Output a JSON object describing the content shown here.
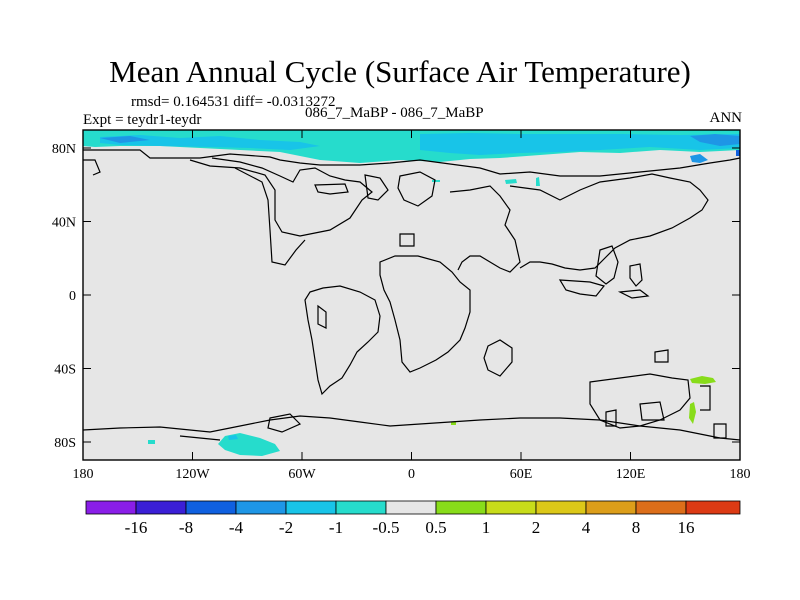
{
  "title": "Mean Annual Cycle (Surface Air Temperature)",
  "stats_line": "rmsd= 0.164531  diff= -0.0313272",
  "expt_line": "Expt = teydr1-teydr",
  "cases_line": "086_7_MaBP - 086_7_MaBP",
  "season": "ANN",
  "x_ticks": [
    "180",
    "120W",
    "60W",
    "0",
    "60E",
    "120E",
    "180"
  ],
  "y_ticks": [
    "80N",
    "40N",
    "0",
    "40S",
    "80S"
  ],
  "colorbar": {
    "labels": [
      "-16",
      "-8",
      "-4",
      "-2",
      "-1",
      "-0.5",
      "0.5",
      "1",
      "2",
      "4",
      "8",
      "16"
    ],
    "colors": [
      "#8a1ee8",
      "#3b1fd6",
      "#1060e0",
      "#1e96e6",
      "#18c4e8",
      "#26dccc",
      "#e6e6e6",
      "#88dc1a",
      "#c8dc1a",
      "#dcc818",
      "#dc9e1a",
      "#dc6e1a",
      "#dc3a14"
    ]
  },
  "map_colors": {
    "background": "#e6e6e6",
    "land_outline": "#000000",
    "anomaly_colors": [
      "#1060e0",
      "#1e96e6",
      "#18c4e8",
      "#26dccc",
      "#88dc1a"
    ]
  }
}
